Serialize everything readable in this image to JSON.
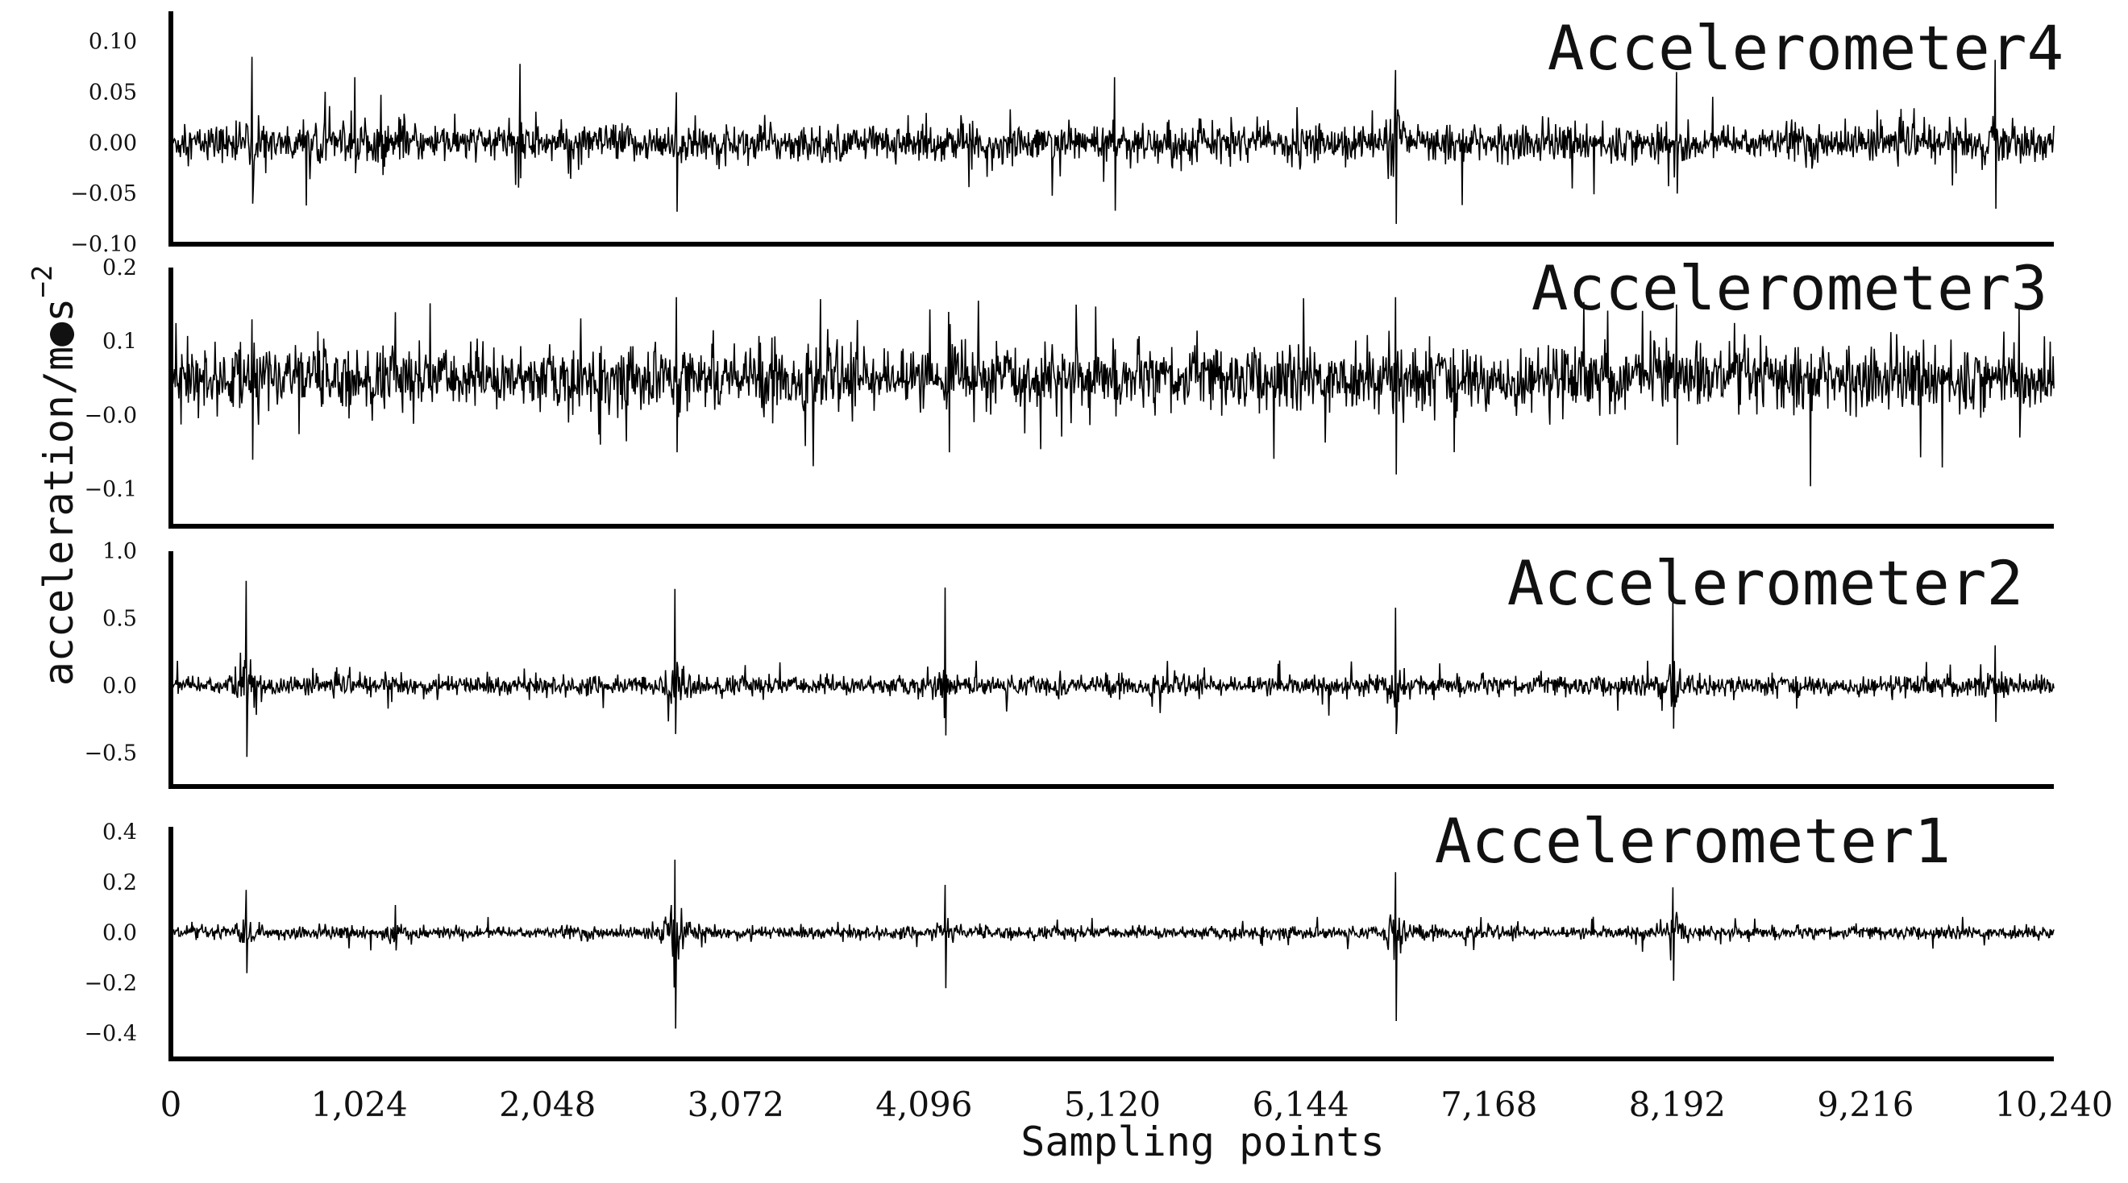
{
  "chart_data": {
    "type": "line",
    "xlabel": "Sampling points",
    "ylabel": "acceleration/m●s",
    "ylabel_sup": "−2",
    "xlim": [
      0,
      10240
    ],
    "xticks": [
      "0",
      "1,024",
      "2,048",
      "3,072",
      "4,096",
      "5,120",
      "6,144",
      "7,168",
      "8,192",
      "9,216",
      "10,240"
    ],
    "grid": false,
    "panels": [
      {
        "title": "Accelerometer4",
        "ylim": [
          -0.1,
          0.13
        ],
        "yticks": [
          0.1,
          0.05,
          0.0,
          -0.05,
          -0.1
        ],
        "ytick_labels": [
          "0.10",
          "0.05",
          "0.00",
          "−0.05",
          "−0.10"
        ],
        "baseline": 0.0,
        "noise_amplitude": 0.016,
        "spikes": [
          {
            "x": 440,
            "max": 0.085,
            "min": -0.06
          },
          {
            "x": 1000,
            "max": 0.065,
            "min": -0.03
          },
          {
            "x": 1900,
            "max": 0.078,
            "min": -0.035
          },
          {
            "x": 2750,
            "max": 0.05,
            "min": -0.068
          },
          {
            "x": 5130,
            "max": 0.065,
            "min": -0.067
          },
          {
            "x": 6660,
            "max": 0.072,
            "min": -0.08
          },
          {
            "x": 8190,
            "max": 0.07,
            "min": -0.05
          },
          {
            "x": 9920,
            "max": 0.082,
            "min": -0.065
          }
        ]
      },
      {
        "title": "Accelerometer3",
        "ylim": [
          -0.15,
          0.2
        ],
        "yticks": [
          0.2,
          0.1,
          0.0,
          -0.1
        ],
        "ytick_labels": [
          "0.2",
          "0.1",
          "−0.0",
          "−0.1"
        ],
        "baseline": 0.05,
        "noise_amplitude": 0.038,
        "spikes": [
          {
            "x": 440,
            "max": 0.13,
            "min": -0.06
          },
          {
            "x": 2750,
            "max": 0.16,
            "min": -0.05
          },
          {
            "x": 4230,
            "max": 0.14,
            "min": -0.05
          },
          {
            "x": 6660,
            "max": 0.16,
            "min": -0.08
          },
          {
            "x": 8190,
            "max": 0.15,
            "min": -0.04
          },
          {
            "x": 10050,
            "max": 0.145,
            "min": -0.03
          }
        ]
      },
      {
        "title": "Accelerometer2",
        "ylim": [
          -0.75,
          1.0
        ],
        "yticks": [
          1.0,
          0.5,
          0.0,
          -0.5
        ],
        "ytick_labels": [
          "1.0",
          "0.5",
          "0.0",
          "−0.5"
        ],
        "baseline": 0.0,
        "noise_amplitude": 0.065,
        "spikes": [
          {
            "x": 410,
            "max": 0.78,
            "min": -0.53
          },
          {
            "x": 2740,
            "max": 0.72,
            "min": -0.36
          },
          {
            "x": 4210,
            "max": 0.73,
            "min": -0.37
          },
          {
            "x": 6660,
            "max": 0.58,
            "min": -0.36
          },
          {
            "x": 8170,
            "max": 0.66,
            "min": -0.32
          },
          {
            "x": 9920,
            "max": 0.3,
            "min": -0.27
          }
        ]
      },
      {
        "title": "Accelerometer1",
        "ylim": [
          -0.5,
          0.42
        ],
        "yticks": [
          0.4,
          0.2,
          0.0,
          -0.2,
          -0.4
        ],
        "ytick_labels": [
          "0.4",
          "0.2",
          "0.0",
          "−0.2",
          "−0.4"
        ],
        "baseline": 0.0,
        "noise_amplitude": 0.022,
        "spikes": [
          {
            "x": 410,
            "max": 0.17,
            "min": -0.16
          },
          {
            "x": 1220,
            "max": 0.11,
            "min": -0.07
          },
          {
            "x": 2740,
            "max": 0.29,
            "min": -0.38
          },
          {
            "x": 4210,
            "max": 0.19,
            "min": -0.22
          },
          {
            "x": 6660,
            "max": 0.24,
            "min": -0.35
          },
          {
            "x": 8170,
            "max": 0.18,
            "min": -0.19
          }
        ]
      }
    ]
  }
}
